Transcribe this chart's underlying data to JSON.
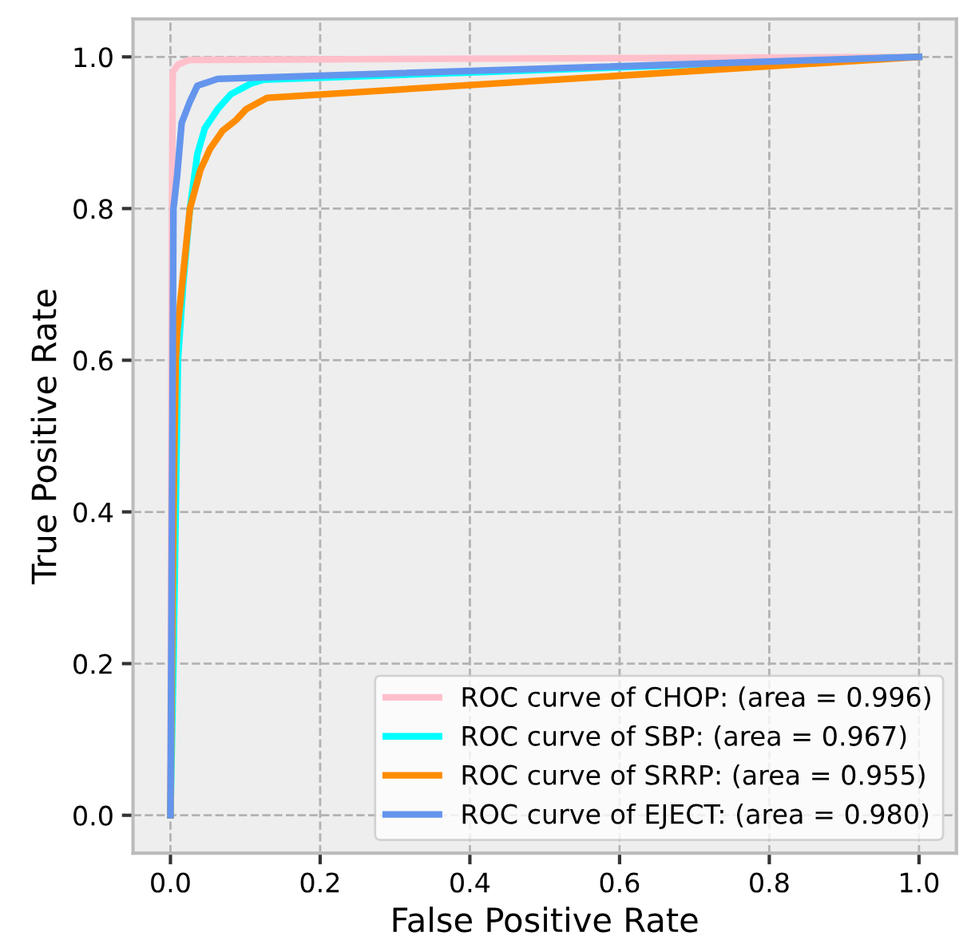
{
  "chart_data": {
    "type": "line",
    "xlabel": "False Positive Rate",
    "ylabel": "True Positive Rate",
    "xlim": [
      -0.05,
      1.05
    ],
    "ylim": [
      -0.05,
      1.05
    ],
    "xticks": [
      {
        "value": 0,
        "label": "0.0"
      },
      {
        "value": 0.2,
        "label": "0.2"
      },
      {
        "value": 0.4,
        "label": "0.4"
      },
      {
        "value": 0.6,
        "label": "0.6"
      },
      {
        "value": 0.8,
        "label": "0.8"
      },
      {
        "value": 1,
        "label": "1.0"
      }
    ],
    "yticks": [
      {
        "value": 0,
        "label": "0.0"
      },
      {
        "value": 0.2,
        "label": "0.2"
      },
      {
        "value": 0.4,
        "label": "0.4"
      },
      {
        "value": 0.6,
        "label": "0.6"
      },
      {
        "value": 0.8,
        "label": "0.8"
      },
      {
        "value": 1,
        "label": "1.0"
      }
    ],
    "grid": true,
    "legend": "bottom right",
    "marker": "none",
    "line_style": "solid",
    "series": [
      {
        "name": "ROC curve of CHOP: (area = 0.996)",
        "color": "#ffc0cb",
        "x": [
          0,
          0.002,
          0.003,
          0.01,
          0.025,
          1
        ],
        "values": [
          0,
          0.8,
          0.98,
          0.99,
          0.996,
          1
        ]
      },
      {
        "name": "ROC curve of SBP: (area = 0.967)",
        "color": "#00ffff",
        "x": [
          0,
          0.004,
          0.007,
          0.01,
          0.017,
          0.026,
          0.036,
          0.046,
          0.063,
          0.081,
          0.108,
          0.125,
          1
        ],
        "values": [
          0,
          0.2,
          0.4,
          0.6,
          0.7,
          0.8,
          0.872,
          0.906,
          0.931,
          0.951,
          0.965,
          0.97,
          1
        ]
      },
      {
        "name": "ROC curve of SRRP: (area = 0.955)",
        "color": "#ff8c00",
        "x": [
          0,
          0.002,
          0.004,
          0.007,
          0.009,
          0.026,
          0.04,
          0.053,
          0.07,
          0.088,
          0.101,
          0.129,
          1
        ],
        "values": [
          0,
          0.2,
          0.4,
          0.6,
          0.637,
          0.8,
          0.851,
          0.879,
          0.903,
          0.917,
          0.931,
          0.946,
          1
        ]
      },
      {
        "name": "ROC curve of EJECT: (area = 0.980)",
        "color": "#6495ed",
        "x": [
          0,
          0.004,
          0.009,
          0.015,
          0.026,
          0.036,
          0.063,
          1
        ],
        "values": [
          0,
          0.8,
          0.844,
          0.913,
          0.941,
          0.962,
          0.971,
          1
        ]
      }
    ]
  }
}
